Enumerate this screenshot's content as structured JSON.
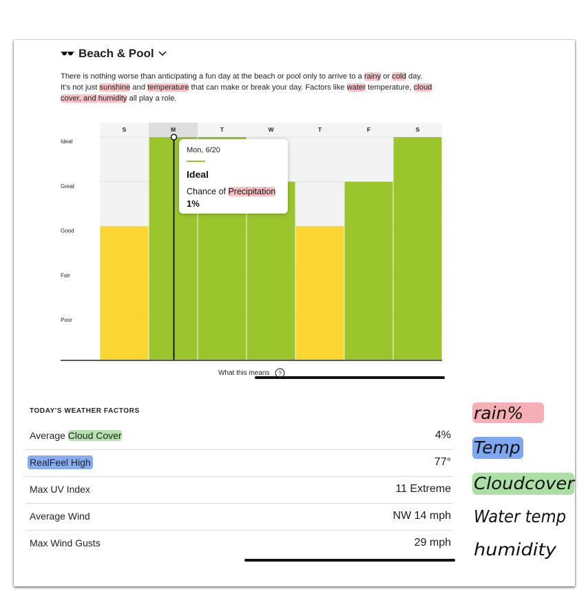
{
  "section": {
    "title": "Beach & Pool",
    "icon": "sunglasses-icon",
    "intro_parts": [
      "There is nothing worse than anticipating a fun day at the beach or pool only to arrive to a ",
      "rainy",
      " or ",
      "cold",
      " day.",
      "It’s not just ",
      "sunshine",
      " and ",
      "temperature",
      " that can make or break your day. Factors like ",
      "water",
      " temperature, ",
      "cloud",
      "cover, and ",
      "humidity",
      " all play a role."
    ]
  },
  "chart_data": {
    "type": "bar",
    "categories": [
      "S",
      "M",
      "T",
      "W",
      "T",
      "F",
      "S"
    ],
    "y_levels": [
      "Poor",
      "Fair",
      "Good",
      "Great",
      "Ideal"
    ],
    "values": [
      "Good",
      "Ideal",
      "Ideal",
      "Great",
      "Good",
      "Great",
      "Ideal"
    ],
    "colors": {
      "Good": "#f9d632",
      "Great": "#9bc52d",
      "Ideal": "#9bc52d"
    },
    "selected_index": 1
  },
  "tooltip": {
    "date": "Mon, 6/20",
    "rating": "Ideal",
    "metric_prefix": "Chance of ",
    "metric_highlight": "Precipitation",
    "value": "1%"
  },
  "what_this_means": "What this means",
  "factors": {
    "title": "TODAY'S WEATHER FACTORS",
    "rows": [
      {
        "label_prefix": "Average ",
        "label_highlight": "Cloud Cover",
        "value": "4%"
      },
      {
        "label_prefix": "",
        "label_highlight": "RealFeel High",
        "value": "77°"
      },
      {
        "label_prefix": "Max UV Index",
        "label_highlight": "",
        "value": "11 Extreme"
      },
      {
        "label_prefix": "Average Wind",
        "label_highlight": "",
        "value": "NW 14 mph"
      },
      {
        "label_prefix": "Max Wind Gusts",
        "label_highlight": "",
        "value": "29 mph"
      }
    ]
  },
  "handwritten_notes": [
    "rain%",
    "Temp",
    "Cloudcover",
    "Water temp",
    "humidity"
  ],
  "colors": {
    "accent_green": "#9bc52d",
    "accent_yellow": "#f9d632"
  }
}
